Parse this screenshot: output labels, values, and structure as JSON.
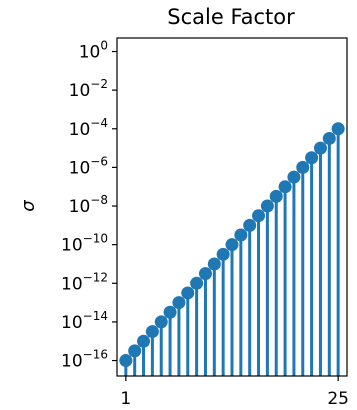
{
  "chart_data": {
    "type": "stem",
    "title": "Scale Factor",
    "xlabel": "",
    "ylabel": "σ",
    "yscale": "log",
    "x": [
      1,
      2,
      3,
      4,
      5,
      6,
      7,
      8,
      9,
      10,
      11,
      12,
      13,
      14,
      15,
      16,
      17,
      18,
      19,
      20,
      21,
      22,
      23,
      24,
      25
    ],
    "y": [
      1e-16,
      3.16e-16,
      1e-15,
      3.16e-15,
      1e-14,
      3.16e-14,
      1e-13,
      3.16e-13,
      1e-12,
      3.16e-12,
      1e-11,
      3.16e-11,
      1e-10,
      3.16e-10,
      1e-09,
      3.16e-09,
      1e-08,
      3.16e-08,
      1e-07,
      3.16e-07,
      1e-06,
      3.16e-06,
      1e-05,
      3.16e-05,
      0.0001
    ],
    "xlim": [
      0,
      26
    ],
    "ylim_exponent": [
      -16.8,
      0.7
    ],
    "x_ticks": [
      {
        "value": 1,
        "label": "1"
      },
      {
        "value": 25,
        "label": "25"
      }
    ],
    "y_ticks": [
      {
        "exp": 0,
        "base": "10",
        "sup": "0"
      },
      {
        "exp": -2,
        "base": "10",
        "sup": "−2"
      },
      {
        "exp": -4,
        "base": "10",
        "sup": "−4"
      },
      {
        "exp": -6,
        "base": "10",
        "sup": "−6"
      },
      {
        "exp": -8,
        "base": "10",
        "sup": "−8"
      },
      {
        "exp": -10,
        "base": "10",
        "sup": "−10"
      },
      {
        "exp": -12,
        "base": "10",
        "sup": "−12"
      },
      {
        "exp": -14,
        "base": "10",
        "sup": "−14"
      },
      {
        "exp": -16,
        "base": "10",
        "sup": "−16"
      }
    ],
    "color": "#1f77b4",
    "grid": false,
    "legend": "none"
  }
}
